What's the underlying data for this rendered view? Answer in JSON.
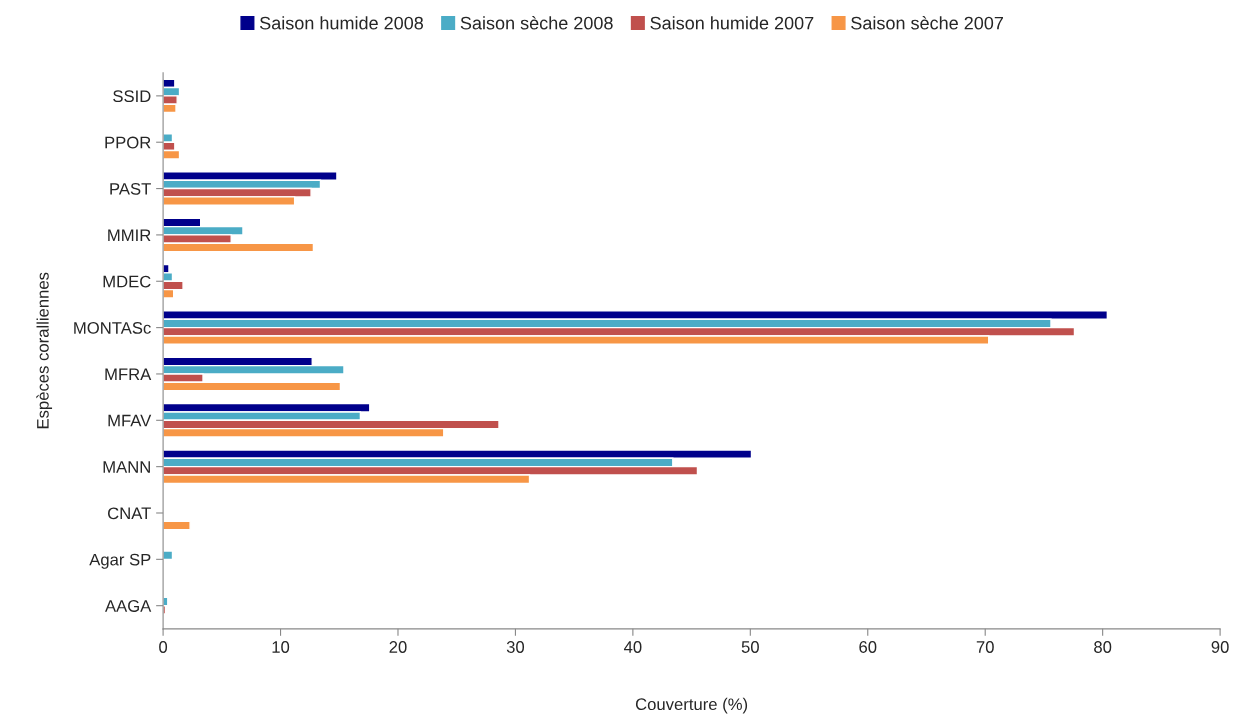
{
  "chart_data": {
    "type": "bar",
    "orientation": "horizontal",
    "xlabel": "Couverture (%)",
    "ylabel": "Espèces coralliennes",
    "categories": [
      "SSID",
      "PPOR",
      "PAST",
      "MMIR",
      "MDEC",
      "MONTASc",
      "MFRA",
      "MFAV",
      "MANN",
      "CNAT",
      "Agar SP",
      "AAGA"
    ],
    "series": [
      {
        "name": "Saison humide 2008",
        "color": "#00008b",
        "values": [
          1.0,
          null,
          14.8,
          3.2,
          0.5,
          80.4,
          12.7,
          17.6,
          50.1,
          null,
          null,
          null
        ]
      },
      {
        "name": "Saison sèche 2008",
        "color": "#4bacc6",
        "values": [
          1.4,
          0.8,
          13.4,
          6.8,
          0.8,
          75.6,
          15.4,
          16.8,
          43.4,
          null,
          0.8,
          0.4
        ]
      },
      {
        "name": "Saison humide 2007",
        "color": "#c0504d",
        "values": [
          1.2,
          1.0,
          12.6,
          5.8,
          1.7,
          77.6,
          3.4,
          28.6,
          45.5,
          null,
          null,
          0.2
        ]
      },
      {
        "name": "Saison sèche 2007",
        "color": "#f79646",
        "values": [
          1.1,
          1.4,
          11.2,
          12.8,
          0.9,
          70.3,
          15.1,
          23.9,
          31.2,
          2.3,
          null,
          null
        ]
      }
    ],
    "xlim": [
      0,
      90
    ],
    "xticks": [
      0,
      10,
      20,
      30,
      40,
      50,
      60,
      70,
      80,
      90
    ],
    "grid": false,
    "legend": "top"
  }
}
